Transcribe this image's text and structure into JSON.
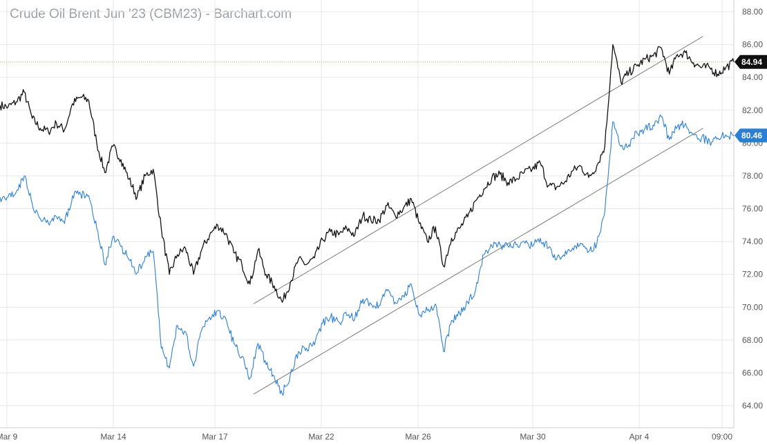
{
  "title": "Crude Oil Brent Jun '23 (CBM23) - Barchart.com",
  "chart_data": {
    "type": "line",
    "title": "Crude Oil Brent Jun '23 (CBM23) - Barchart.com",
    "xlabel": "",
    "ylabel": "",
    "ylim": [
      63.0,
      88.6
    ],
    "y_ticks": [
      64.0,
      66.0,
      68.0,
      70.0,
      72.0,
      74.0,
      76.0,
      78.0,
      80.0,
      82.0,
      84.0,
      86.0,
      88.0
    ],
    "y_tick_labels": [
      "64.00",
      "66.00",
      "68.00",
      "70.00",
      "72.00",
      "74.00",
      "76.00",
      "78.00",
      "80.00",
      "82.00",
      "84.00",
      "86.00",
      "88.00"
    ],
    "x_ticks": [
      "Mar 9",
      "Mar 14",
      "Mar 17",
      "Mar 22",
      "Mar 26",
      "Mar 30",
      "Apr 4",
      "09:00"
    ],
    "grid": true,
    "colors": {
      "series_black": "#111111",
      "series_blue": "#2a7fd4",
      "trendline": "#7a7a7a",
      "current_line": "#e8a400",
      "grid": "#e6e6e6"
    },
    "last_price_labels": {
      "black": "84.94",
      "blue": "80.46"
    },
    "series": [
      {
        "color": "#111111",
        "values": [
          82.3,
          82.2,
          82.5,
          83.1,
          81.5,
          80.9,
          80.7,
          81.2,
          80.8,
          82.4,
          82.8,
          82.6,
          80.0,
          78.2,
          79.8,
          79.0,
          77.8,
          76.7,
          78.0,
          78.4,
          74.8,
          72.0,
          73.2,
          73.6,
          72.0,
          73.5,
          74.4,
          75.0,
          74.5,
          73.3,
          72.6,
          71.4,
          73.5,
          72.0,
          71.3,
          70.3,
          71.5,
          72.9,
          72.6,
          73.0,
          74.1,
          74.6,
          74.4,
          74.8,
          74.4,
          75.6,
          75.3,
          75.3,
          76.2,
          75.6,
          76.0,
          76.6,
          75.1,
          74.0,
          74.9,
          72.5,
          74.2,
          74.8,
          75.5,
          76.5,
          77.2,
          77.9,
          78.1,
          77.6,
          77.8,
          78.2,
          78.4,
          78.8,
          77.4,
          77.3,
          77.6,
          78.3,
          78.6,
          77.9,
          78.6,
          79.8,
          86.0,
          83.7,
          84.3,
          84.7,
          85.1,
          85.3,
          85.8,
          84.2,
          85.4,
          85.5,
          84.9,
          84.6,
          84.6,
          84.2,
          84.6,
          84.94
        ]
      },
      {
        "color": "#2a7fd4",
        "values": [
          76.7,
          76.7,
          77.0,
          78.0,
          76.3,
          75.4,
          75.1,
          75.5,
          75.1,
          76.8,
          76.9,
          76.8,
          74.8,
          72.6,
          74.3,
          73.7,
          72.9,
          72.1,
          73.1,
          73.4,
          67.5,
          66.3,
          68.9,
          68.5,
          66.4,
          68.6,
          69.4,
          69.8,
          69.3,
          67.8,
          67.0,
          65.7,
          67.8,
          66.5,
          65.8,
          64.7,
          65.9,
          67.3,
          67.5,
          67.7,
          69.0,
          69.4,
          69.1,
          69.5,
          69.3,
          70.5,
          70.2,
          70.1,
          71.0,
          70.3,
          70.7,
          71.4,
          69.5,
          69.8,
          70.2,
          67.3,
          69.2,
          69.6,
          70.3,
          71.1,
          73.2,
          73.7,
          73.8,
          73.7,
          73.8,
          74.0,
          73.7,
          74.2,
          73.6,
          72.9,
          73.1,
          73.6,
          73.9,
          73.4,
          73.8,
          75.8,
          81.3,
          79.8,
          79.9,
          80.6,
          80.9,
          81.1,
          81.6,
          80.2,
          81.0,
          81.2,
          80.5,
          80.3,
          80.1,
          80.3,
          80.5,
          80.46
        ]
      }
    ],
    "trendlines": [
      {
        "x": [
          0.3455,
          0.958
        ],
        "y": [
          70.2,
          86.5
        ]
      },
      {
        "x": [
          0.3455,
          0.958
        ],
        "y": [
          64.7,
          80.9
        ]
      }
    ],
    "current_price_reference": 84.94
  }
}
